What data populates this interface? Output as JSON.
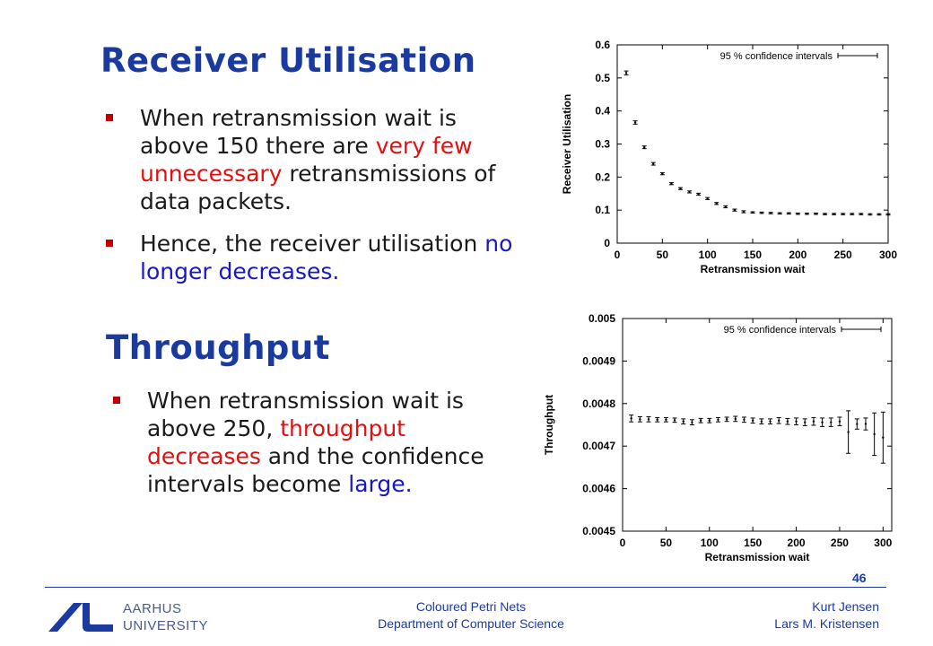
{
  "slide": {
    "title1": "Receiver Utilisation",
    "bullets1": [
      {
        "parts": [
          {
            "text": "When retransmission wait is above 150 there are ",
            "style": "normal"
          },
          {
            "text": "very few unnecessary",
            "style": "red"
          },
          {
            "text": " retransmissions of data packets.",
            "style": "normal"
          }
        ]
      },
      {
        "parts": [
          {
            "text": "Hence, the receiver utilisation ",
            "style": "normal"
          },
          {
            "text": "no longer decreases.",
            "style": "blue"
          }
        ]
      }
    ],
    "title2": "Throughput",
    "bullets2": [
      {
        "parts": [
          {
            "text": "When retransmission wait is above 250, ",
            "style": "normal"
          },
          {
            "text": "throughput decreases",
            "style": "red"
          },
          {
            "text": " and the confidence intervals become ",
            "style": "normal"
          },
          {
            "text": "large.",
            "style": "blue"
          }
        ]
      }
    ],
    "page_number": "46"
  },
  "footer": {
    "university_line1": "AARHUS",
    "university_line2": "UNIVERSITY",
    "center_line1": "Coloured Petri Nets",
    "center_line2": "Department of Computer Science",
    "right_line1": "Kurt Jensen",
    "right_line2": "Lars M. Kristensen"
  },
  "colors": {
    "title": "#1a3aa0",
    "accent_red": "#e01010",
    "accent_blue": "#1818c8",
    "bullet": "#c00000"
  },
  "chart_data": [
    {
      "type": "scatter",
      "title": "",
      "xlabel": "Retransmission wait",
      "ylabel": "Receiver Utilisation",
      "xlim": [
        0,
        300
      ],
      "ylim": [
        0,
        0.6
      ],
      "xticks": [
        "0",
        "50",
        "100",
        "150",
        "200",
        "250",
        "300"
      ],
      "yticks": [
        "0",
        "0.1",
        "0.2",
        "0.3",
        "0.4",
        "0.5",
        "0.6"
      ],
      "legend": "95 % confidence intervals",
      "legend_position": "top-right",
      "x": [
        10,
        20,
        30,
        40,
        50,
        60,
        70,
        80,
        90,
        100,
        110,
        120,
        130,
        140,
        150,
        160,
        170,
        180,
        190,
        200,
        210,
        220,
        230,
        240,
        250,
        260,
        270,
        280,
        290,
        300
      ],
      "y": [
        0.515,
        0.365,
        0.29,
        0.24,
        0.21,
        0.18,
        0.165,
        0.155,
        0.148,
        0.135,
        0.12,
        0.11,
        0.1,
        0.095,
        0.093,
        0.092,
        0.091,
        0.09,
        0.09,
        0.089,
        0.089,
        0.089,
        0.088,
        0.088,
        0.088,
        0.088,
        0.088,
        0.087,
        0.087,
        0.087
      ],
      "err": [
        0.006,
        0.005,
        0.004,
        0.004,
        0.003,
        0.003,
        0.003,
        0.003,
        0.003,
        0.003,
        0.003,
        0.003,
        0.003,
        0.003,
        0.002,
        0.002,
        0.002,
        0.002,
        0.002,
        0.002,
        0.002,
        0.002,
        0.002,
        0.002,
        0.002,
        0.002,
        0.002,
        0.002,
        0.002,
        0.002
      ]
    },
    {
      "type": "scatter",
      "title": "",
      "xlabel": "Retransmission wait",
      "ylabel": "Throughput",
      "xlim": [
        0,
        310
      ],
      "ylim": [
        0.0045,
        0.005
      ],
      "xticks": [
        "0",
        "50",
        "100",
        "150",
        "200",
        "250",
        "300"
      ],
      "yticks": [
        "0.0045",
        "0.0046",
        "0.0047",
        "0.0048",
        "0.0049",
        "0.005"
      ],
      "legend": "95 % confidence intervals",
      "legend_position": "top-right",
      "x": [
        10,
        20,
        30,
        40,
        50,
        60,
        70,
        80,
        90,
        100,
        110,
        120,
        130,
        140,
        150,
        160,
        170,
        180,
        190,
        200,
        210,
        220,
        230,
        240,
        250,
        260,
        270,
        280,
        290,
        300
      ],
      "y": [
        0.004765,
        0.004763,
        0.004763,
        0.004762,
        0.004762,
        0.004761,
        0.004758,
        0.004756,
        0.00476,
        0.00476,
        0.004762,
        0.004763,
        0.004764,
        0.004762,
        0.00476,
        0.004758,
        0.004758,
        0.00476,
        0.004758,
        0.004758,
        0.004756,
        0.004758,
        0.004756,
        0.004756,
        0.004758,
        0.004733,
        0.004752,
        0.004752,
        0.004728,
        0.00472
      ],
      "err": [
        8e-06,
        6e-06,
        6e-06,
        5e-06,
        5e-06,
        5e-06,
        6e-06,
        6e-06,
        5e-06,
        5e-06,
        5e-06,
        5e-06,
        6e-06,
        6e-06,
        6e-06,
        6e-06,
        6e-06,
        7e-06,
        7e-06,
        8e-06,
        8e-06,
        9e-06,
        1e-05,
        1e-05,
        1e-05,
        5e-05,
        1.2e-05,
        1.4e-05,
        5e-05,
        6e-05
      ]
    }
  ]
}
